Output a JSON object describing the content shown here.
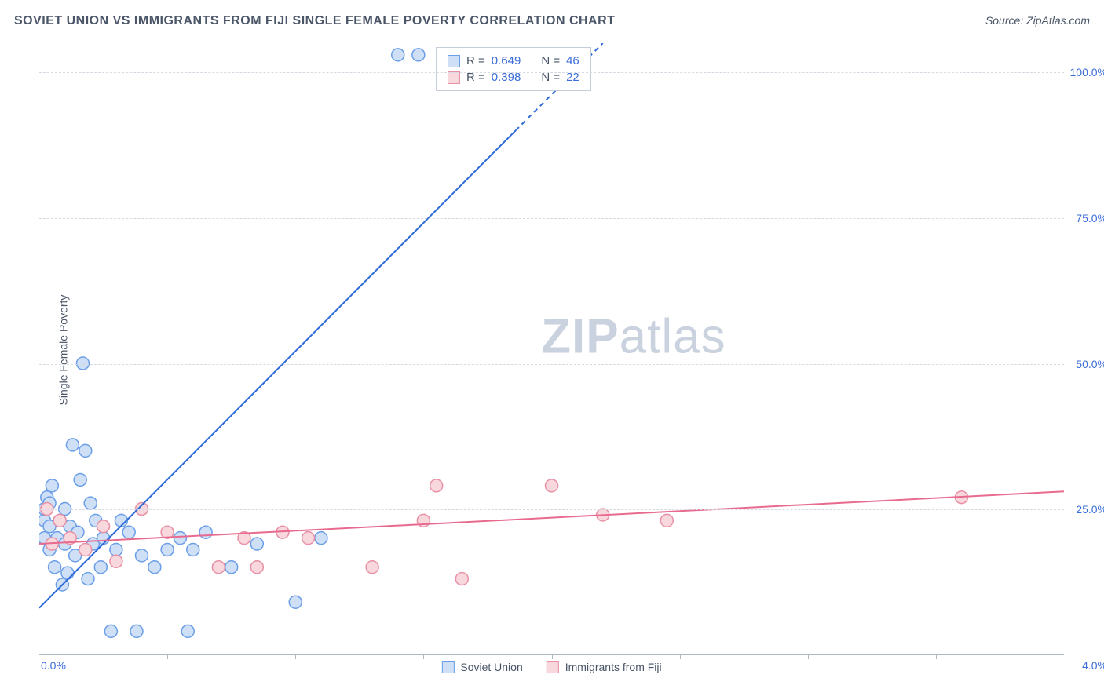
{
  "title": "SOVIET UNION VS IMMIGRANTS FROM FIJI SINGLE FEMALE POVERTY CORRELATION CHART",
  "source": "Source: ZipAtlas.com",
  "watermark": {
    "zip": "ZIP",
    "atlas": "atlas"
  },
  "chart": {
    "type": "scatter",
    "ylabel": "Single Female Poverty",
    "xlim": [
      0.0,
      4.0
    ],
    "ylim": [
      0.0,
      105.0
    ],
    "x_ticks_label_left": "0.0%",
    "x_ticks_label_right": "4.0%",
    "x_minor_ticks": [
      0.5,
      1.0,
      1.5,
      2.0,
      2.5,
      3.0,
      3.5
    ],
    "y_gridlines": [
      25.0,
      50.0,
      75.0,
      100.0
    ],
    "y_tick_labels": [
      "25.0%",
      "50.0%",
      "75.0%",
      "100.0%"
    ],
    "background_color": "#ffffff",
    "grid_color": "#d5dae2",
    "axis_color": "#b0b8c4",
    "label_color": "#4a5568",
    "tick_label_color": "#3b6dd8",
    "marker_radius": 8,
    "marker_stroke_width": 1.5,
    "trendline_width": 2,
    "series": [
      {
        "name": "Soviet Union",
        "color_fill": "#cfe0f6",
        "color_stroke": "#6a9ee8",
        "trend_color": "#2f6bd8",
        "trend_dash_tail": true,
        "R": "0.649",
        "N": "46",
        "trend": {
          "x1": 0.0,
          "y1": 8,
          "x2": 2.2,
          "y2": 105
        },
        "points": [
          [
            0.02,
            20
          ],
          [
            0.02,
            23
          ],
          [
            0.02,
            25
          ],
          [
            0.03,
            27
          ],
          [
            0.04,
            18
          ],
          [
            0.04,
            22
          ],
          [
            0.04,
            26
          ],
          [
            0.05,
            29
          ],
          [
            0.06,
            15
          ],
          [
            0.07,
            20
          ],
          [
            0.08,
            23
          ],
          [
            0.09,
            12
          ],
          [
            0.1,
            19
          ],
          [
            0.1,
            25
          ],
          [
            0.11,
            14
          ],
          [
            0.12,
            22
          ],
          [
            0.13,
            36
          ],
          [
            0.14,
            17
          ],
          [
            0.15,
            21
          ],
          [
            0.16,
            30
          ],
          [
            0.17,
            50
          ],
          [
            0.18,
            35
          ],
          [
            0.19,
            13
          ],
          [
            0.2,
            26
          ],
          [
            0.21,
            19
          ],
          [
            0.22,
            23
          ],
          [
            0.24,
            15
          ],
          [
            0.25,
            20
          ],
          [
            0.28,
            4
          ],
          [
            0.3,
            18
          ],
          [
            0.32,
            23
          ],
          [
            0.35,
            21
          ],
          [
            0.38,
            4
          ],
          [
            0.4,
            17
          ],
          [
            0.45,
            15
          ],
          [
            0.5,
            18
          ],
          [
            0.55,
            20
          ],
          [
            0.58,
            4
          ],
          [
            0.6,
            18
          ],
          [
            0.65,
            21
          ],
          [
            0.75,
            15
          ],
          [
            0.85,
            19
          ],
          [
            1.0,
            9
          ],
          [
            1.1,
            20
          ],
          [
            1.4,
            103
          ],
          [
            1.48,
            103
          ]
        ]
      },
      {
        "name": "Immigrants from Fiji",
        "color_fill": "#f8d7dd",
        "color_stroke": "#e890a5",
        "trend_color": "#e86b8f",
        "trend_dash_tail": false,
        "R": "0.398",
        "N": "22",
        "trend": {
          "x1": 0.0,
          "y1": 19,
          "x2": 4.0,
          "y2": 28
        },
        "points": [
          [
            0.03,
            25
          ],
          [
            0.05,
            19
          ],
          [
            0.08,
            23
          ],
          [
            0.12,
            20
          ],
          [
            0.18,
            18
          ],
          [
            0.25,
            22
          ],
          [
            0.3,
            16
          ],
          [
            0.4,
            25
          ],
          [
            0.5,
            21
          ],
          [
            0.7,
            15
          ],
          [
            0.8,
            20
          ],
          [
            0.85,
            15
          ],
          [
            0.95,
            21
          ],
          [
            1.05,
            20
          ],
          [
            1.3,
            15
          ],
          [
            1.5,
            23
          ],
          [
            1.55,
            29
          ],
          [
            1.65,
            13
          ],
          [
            2.0,
            29
          ],
          [
            2.2,
            24
          ],
          [
            2.45,
            23
          ],
          [
            3.6,
            27
          ]
        ]
      }
    ],
    "legend_bottom": [
      {
        "label": "Soviet Union",
        "fill": "#cfe0f6",
        "stroke": "#6a9ee8"
      },
      {
        "label": "Immigrants from Fiji",
        "fill": "#f8d7dd",
        "stroke": "#e890a5"
      }
    ]
  }
}
